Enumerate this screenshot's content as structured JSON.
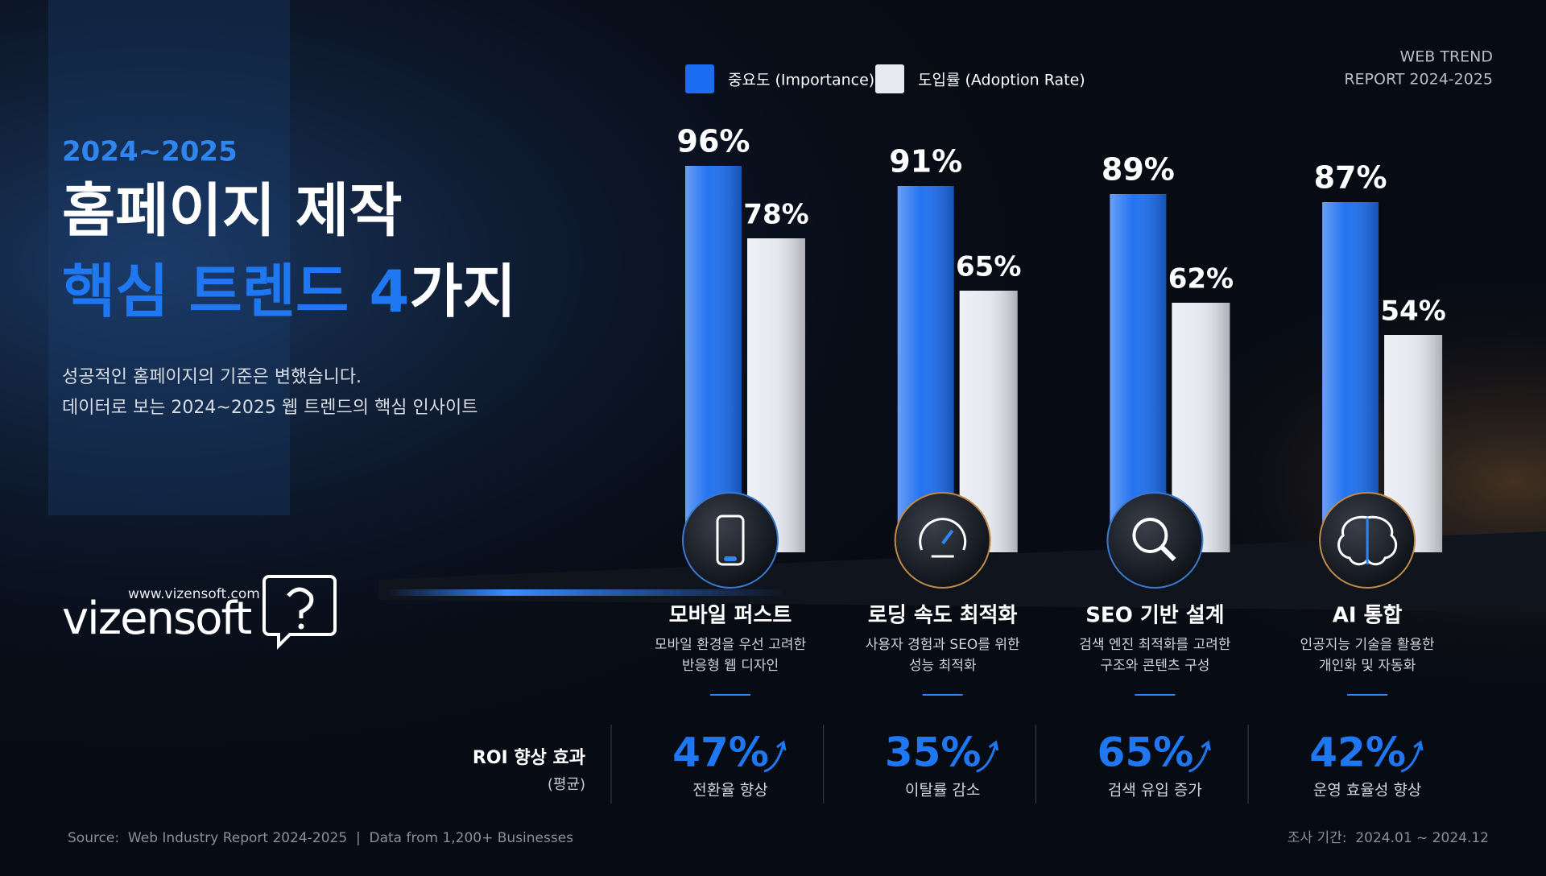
{
  "header": {
    "eyebrow": "2024~2025",
    "title_line1": "홈페이지 제작",
    "title_line2": {
      "highlight": "핵심 트렌드 4",
      "rest": "가지"
    },
    "subtitle": [
      "성공적인 홈페이지의 기준은 변했습니다.",
      "데이터로 보는 2024~2025 웹 트렌드의 핵심 인사이트"
    ]
  },
  "report_tag": [
    "WEB TREND",
    "REPORT 2024-2025"
  ],
  "brand": {
    "name": "vizensoft",
    "url": "www.vizensoft.com"
  },
  "chart_data": {
    "type": "bar",
    "categories": [
      "모바일 퍼스트",
      "로딩 속도 최적화",
      "SEO 기반 설계",
      "AI 통합"
    ],
    "series": [
      {
        "name": "중요도 (Importance)",
        "color": "#1a6cf0",
        "values": [
          96,
          91,
          89,
          87
        ],
        "value_labels": [
          "96%",
          "91%",
          "89%",
          "87%"
        ]
      },
      {
        "name": "도입률 (Adoption Rate)",
        "color": "#e6e9f0",
        "values": [
          78,
          65,
          62,
          54
        ],
        "value_labels": [
          "78%",
          "65%",
          "62%",
          "54%"
        ]
      }
    ]
  },
  "trends": [
    {
      "description": [
        "모바일 환경을 우선 고려한",
        "반응형 웹 디자인"
      ],
      "roi": "47%",
      "roi_caption": "전환율 향상"
    },
    {
      "description": [
        "사용자 경험과 SEO를 위한",
        "성능 최적화"
      ],
      "roi": "35%",
      "roi_caption": "이탈률 감소"
    },
    {
      "description": [
        "검색 엔진 최적화를 고려한",
        "구조와 콘텐츠 구성"
      ],
      "roi": "65%",
      "roi_caption": "검색 유입 증가"
    },
    {
      "description": [
        "인공지능 기술을 활용한",
        "개인화 및 자동화"
      ],
      "roi": "42%",
      "roi_caption": "운영 효율성 향상"
    }
  ],
  "roi_heading": {
    "label": "ROI 향상 효과",
    "note": "(평균)"
  },
  "footer": {
    "source": "Source:  Web Industry Report 2024-2025  |  Data from 1,200+ Businesses",
    "period": "조사 기간:  2024.01 ~ 2024.12"
  }
}
